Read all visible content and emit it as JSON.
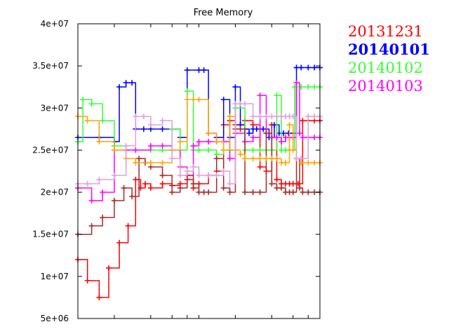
{
  "chart_data": {
    "type": "line",
    "title": "Free Memory",
    "xlabel": "",
    "ylabel": "",
    "ylim": [
      5000000,
      40000000
    ],
    "xlim": [
      0,
      100
    ],
    "x_log_scale": true,
    "y_ticks": [
      "5e+06",
      "1e+07",
      "1.5e+07",
      "2e+07",
      "2.5e+07",
      "3e+07",
      "3.5e+07",
      "4e+07"
    ],
    "y_tick_values": [
      5000000,
      10000000,
      15000000,
      20000000,
      25000000,
      30000000,
      35000000,
      40000000
    ],
    "x_tick_values": [
      2,
      4,
      6,
      8,
      10,
      20,
      40,
      60,
      80,
      100
    ],
    "grid": false,
    "legend_position": "outside-right",
    "legend": [
      {
        "name": "20131231",
        "color": "#ff0000"
      },
      {
        "name": "20140101",
        "color": "#0000ff"
      },
      {
        "name": "20140102",
        "color": "#33ff33"
      },
      {
        "name": "20140103",
        "color": "#ff00ff"
      }
    ],
    "series": [
      {
        "name": "20131231",
        "color": "#ff0000",
        "x": [
          1,
          1.2,
          1.5,
          1.8,
          2.2,
          2.6,
          3,
          3.3,
          3.6,
          4,
          5,
          6,
          7,
          8,
          9,
          10,
          12,
          14,
          16,
          18,
          20,
          24,
          28,
          32,
          36,
          40,
          44,
          48,
          52,
          56,
          60,
          66,
          72,
          80,
          90,
          100
        ],
        "values": [
          12000000,
          9500000,
          7500000,
          11000000,
          14000000,
          16000000,
          21500000,
          20500000,
          21000000,
          20500000,
          21000000,
          20800000,
          21000000,
          21500000,
          20500000,
          21000000,
          22000000,
          22500000,
          28000000,
          28500000,
          28000000,
          28500000,
          28000000,
          23000000,
          22500000,
          28000000,
          21500000,
          21000000,
          21000000,
          21000000,
          21000000,
          21000000,
          28500000,
          28500000,
          28500000,
          28500000
        ]
      },
      {
        "name": "20140101",
        "color": "#0000ff",
        "x": [
          1,
          1.5,
          2,
          2.2,
          2.5,
          2.8,
          3,
          3.5,
          4,
          5,
          6,
          7,
          8,
          10,
          11,
          12,
          14,
          16,
          18,
          20,
          22,
          24,
          26,
          28,
          30,
          34,
          38,
          42,
          46,
          50,
          55,
          60,
          64,
          70,
          80,
          90,
          100
        ],
        "values": [
          26500000,
          26500000,
          26000000,
          32500000,
          33000000,
          33000000,
          27500000,
          27500000,
          27500000,
          27500000,
          27500000,
          26500000,
          34500000,
          34500000,
          34500000,
          27000000,
          26500000,
          31000000,
          26500000,
          32500000,
          28000000,
          27500000,
          27000000,
          27500000,
          27500000,
          27500000,
          26500000,
          28000000,
          27000000,
          27000000,
          27000000,
          27000000,
          34800000,
          34800000,
          34800000,
          34800000,
          34800000
        ]
      },
      {
        "name": "20140102",
        "color": "#33ff33",
        "x": [
          1,
          1.1,
          1.3,
          1.6,
          2,
          2.5,
          3,
          4,
          5,
          6,
          7,
          8,
          9,
          10,
          12,
          14,
          16,
          18,
          20,
          24,
          28,
          32,
          36,
          40,
          44,
          48,
          52,
          56,
          60,
          62,
          70,
          80,
          90,
          100
        ],
        "values": [
          26000000,
          31000000,
          30500000,
          28500000,
          25500000,
          25000000,
          25000000,
          25000000,
          25000000,
          27500000,
          25000000,
          32000000,
          25000000,
          25000000,
          25000000,
          24500000,
          25000000,
          25000000,
          30000000,
          25000000,
          25000000,
          25000000,
          25000000,
          25000000,
          31500000,
          25000000,
          25000000,
          25000000,
          25000000,
          32500000,
          32500000,
          32500000,
          32500000,
          32500000
        ]
      },
      {
        "name": "20140103",
        "color": "#ff00ff",
        "x": [
          1,
          1.3,
          1.6,
          2,
          2.5,
          3,
          4,
          5,
          6,
          7,
          8,
          9,
          10,
          12,
          14,
          16,
          18,
          20,
          24,
          28,
          32,
          36,
          40,
          44,
          48,
          52,
          56,
          60,
          64,
          68,
          72,
          80,
          90,
          100
        ],
        "values": [
          20500000,
          19000000,
          20000000,
          25000000,
          25000000,
          25000000,
          25500000,
          25500000,
          25000000,
          23000000,
          22000000,
          25500000,
          26000000,
          26000000,
          26000000,
          26000000,
          24000000,
          27000000,
          26000000,
          26500000,
          31500000,
          27000000,
          26500000,
          26500000,
          26000000,
          26500000,
          26500000,
          26500000,
          33000000,
          27000000,
          26500000,
          26500000,
          26500000,
          26500000
        ]
      },
      {
        "name": "",
        "color": "#a52a2a",
        "x": [
          1,
          1.3,
          1.6,
          2,
          2.4,
          2.8,
          3.2,
          3.6,
          4,
          5,
          6,
          7,
          8,
          9,
          10,
          11,
          12,
          14,
          16,
          18,
          20,
          22,
          24,
          28,
          32,
          36,
          40,
          44,
          48,
          52,
          56,
          60,
          64,
          68,
          72,
          80,
          90,
          100
        ],
        "values": [
          15000000,
          16000000,
          17000000,
          19000000,
          20500000,
          19500000,
          24000000,
          23500000,
          23000000,
          22000000,
          20000000,
          20500000,
          22000000,
          21000000,
          20000000,
          20000000,
          20000000,
          24000000,
          20500000,
          20000000,
          27500000,
          27500000,
          20000000,
          20000000,
          20000000,
          27000000,
          21000000,
          20500000,
          20500000,
          20000000,
          20000000,
          20000000,
          24000000,
          20500000,
          20000000,
          20000000,
          20000000,
          20000000
        ]
      },
      {
        "name": "",
        "color": "#ffa500",
        "x": [
          1,
          1.2,
          1.5,
          2,
          2.5,
          3,
          4,
          5,
          6,
          7,
          8,
          9,
          10,
          12,
          14,
          16,
          18,
          20,
          22,
          24,
          28,
          32,
          36,
          40,
          44,
          48,
          52,
          56,
          60,
          64,
          70,
          80,
          90,
          100
        ],
        "values": [
          29000000,
          28500000,
          26000000,
          25000000,
          24000000,
          23500000,
          23500000,
          23500000,
          25000000,
          26000000,
          31000000,
          31000000,
          31000000,
          27000000,
          26000000,
          25000000,
          29000000,
          25000000,
          24500000,
          24000000,
          24000000,
          24000000,
          24000000,
          24000000,
          24000000,
          23500000,
          23500000,
          28000000,
          25000000,
          24000000,
          23500000,
          23500000,
          23500000,
          23500000
        ]
      },
      {
        "name": "",
        "color": "#dda0dd",
        "x": [
          1,
          1.2,
          1.5,
          2,
          2.5,
          3,
          3.5,
          4,
          5,
          6,
          7,
          8,
          9,
          10,
          12,
          14,
          16,
          18,
          20,
          22,
          24,
          28,
          32,
          36,
          40,
          44,
          48,
          52,
          56,
          60,
          64,
          70,
          80,
          90,
          100
        ],
        "values": [
          21000000,
          21000000,
          21500000,
          22000000,
          25500000,
          29000000,
          29000000,
          28000000,
          28500000,
          24000000,
          22000000,
          22500000,
          23000000,
          22000000,
          22000000,
          22000000,
          22500000,
          21000000,
          30500000,
          30500000,
          30500000,
          29000000,
          29000000,
          29000000,
          29000000,
          29000000,
          29000000,
          29000000,
          29000000,
          29000000,
          24000000,
          24000000,
          29000000,
          29000000,
          29000000
        ]
      }
    ]
  }
}
